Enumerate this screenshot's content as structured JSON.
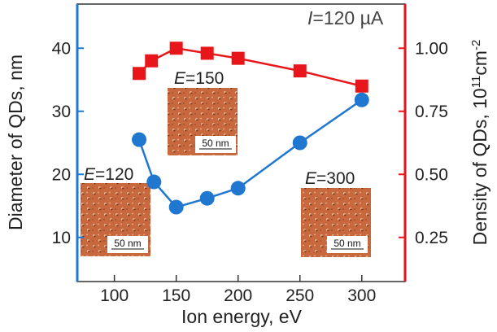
{
  "chart_data": {
    "type": "line",
    "annotation": {
      "italic": "I",
      "rest": "=120 µA"
    },
    "xlabel": "Ion energy, eV",
    "ylabel_left": "Diameter of QDs, nm",
    "ylabel_right": {
      "prefix": "Density of QDs, 10",
      "exp1": "11",
      "mid": "cm",
      "exp2": "-2"
    },
    "xlim": [
      70,
      335
    ],
    "ylim_left": [
      3,
      47
    ],
    "ylim_right": [
      0.075,
      1.175
    ],
    "x_ticks": [
      100,
      150,
      200,
      250,
      300
    ],
    "x_tick_labels": [
      "100",
      "150",
      "200",
      "250",
      "300"
    ],
    "y_left_ticks": [
      10,
      20,
      30,
      40
    ],
    "y_left_tick_labels": [
      "10",
      "20",
      "30",
      "40"
    ],
    "y_right_ticks": [
      0.25,
      0.5,
      0.75,
      1.0
    ],
    "y_right_tick_labels": [
      "0.25",
      "0.50",
      "0.75",
      "1.00"
    ],
    "series": [
      {
        "name": "Diameter",
        "axis": "left",
        "color": "#1f77d0",
        "marker": "circle",
        "x": [
          120,
          132,
          150,
          175,
          200,
          250,
          300
        ],
        "y": [
          25.5,
          18.8,
          14.8,
          16.2,
          17.8,
          25.0,
          31.8
        ]
      },
      {
        "name": "Density",
        "axis": "right",
        "color": "#e8161b",
        "marker": "square",
        "x": [
          120,
          130,
          150,
          175,
          200,
          250,
          300
        ],
        "y": [
          0.9,
          0.95,
          1.0,
          0.98,
          0.96,
          0.91,
          0.85
        ]
      }
    ],
    "insets": [
      {
        "id": "e120",
        "label_italic": "E",
        "label_rest": "=120",
        "scale_label": "50 nm"
      },
      {
        "id": "e150",
        "label_italic": "E",
        "label_rest": "=150",
        "scale_label": "50 nm"
      },
      {
        "id": "e300",
        "label_italic": "E",
        "label_rest": "=300",
        "scale_label": "50 nm"
      }
    ]
  },
  "colors": {
    "axis_left": "#1f77d0",
    "axis_right": "#e8161b",
    "afm_base": "#c8683e"
  }
}
